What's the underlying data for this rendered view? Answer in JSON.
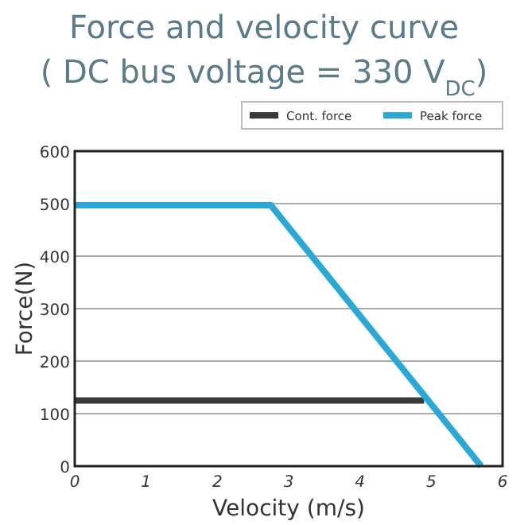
{
  "chart_data": {
    "type": "line",
    "title": "Force and velocity curve",
    "subtitle": "( DC bus voltage = 330 V$_{DC}$)",
    "xlabel": "Velocity (m/s)",
    "ylabel": "Force(N)",
    "xlim": [
      0,
      6
    ],
    "xticks": [
      0,
      1,
      2,
      3,
      4,
      5,
      6
    ],
    "ylim": [
      0,
      600
    ],
    "yticks": [
      0,
      100,
      200,
      300,
      400,
      500,
      600
    ],
    "grid": "y",
    "legend": "top right",
    "line_style": "solid",
    "series": [
      {
        "name": "Cont. force",
        "color": "#3a3a3a",
        "x": [
          0,
          4.9
        ],
        "values": [
          125,
          125
        ]
      },
      {
        "name": "Peak force",
        "color": "#2aa8d6",
        "x": [
          0,
          2.75,
          5.7
        ],
        "values": [
          497,
          497,
          0
        ]
      }
    ]
  }
}
